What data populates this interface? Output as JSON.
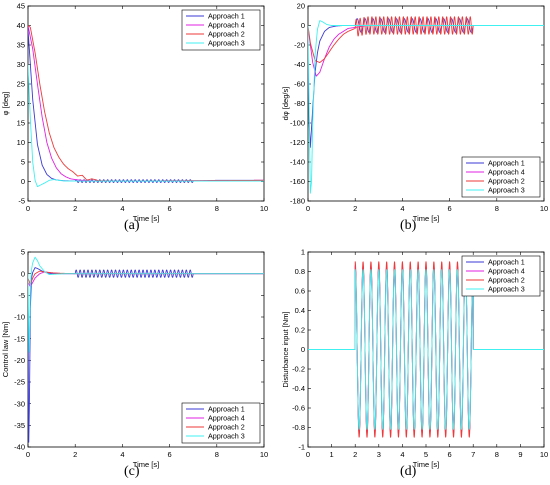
{
  "colors": {
    "approach1": "#3a3ad6",
    "approach4": "#e020e0",
    "approach2": "#ee3a3a",
    "approach3": "#40f0f0"
  },
  "chart_data": [
    {
      "id": "a",
      "type": "line",
      "panel_label": "(a)",
      "xlabel": "Time [s]",
      "ylabel": "φ [deg]",
      "xlim": [
        0,
        10
      ],
      "ylim": [
        -5,
        45
      ],
      "xticks": [
        "0",
        "2",
        "4",
        "6",
        "8",
        "10"
      ],
      "yticks": [
        "-5",
        "0",
        "5",
        "10",
        "15",
        "20",
        "25",
        "30",
        "35",
        "40",
        "45"
      ],
      "legend": "top-right",
      "series": [
        {
          "name": "Approach 1",
          "color": "#3a3ad6",
          "x": [
            0,
            0.2,
            0.4,
            0.6,
            0.8,
            1.0,
            1.2,
            1.5,
            2.0,
            2.5,
            3,
            4,
            5,
            6,
            7,
            8,
            10
          ],
          "y": [
            39,
            21,
            9.5,
            4.2,
            1.8,
            0.8,
            0.4,
            0.2,
            0.1,
            0.1,
            0.1,
            0.1,
            0.1,
            0.1,
            0.1,
            0.3,
            0.3
          ],
          "osc": [
            2,
            7,
            0.35,
            0.5
          ]
        },
        {
          "name": "Approach 4",
          "color": "#e020e0",
          "x": [
            0,
            0.2,
            0.4,
            0.6,
            0.8,
            1.0,
            1.2,
            1.4,
            1.6,
            1.8,
            2.0,
            2.3,
            2.6,
            3,
            4,
            10
          ],
          "y": [
            40,
            34,
            25,
            16.5,
            10,
            6,
            3.5,
            2,
            1.2,
            0.7,
            0.5,
            0.3,
            0.2,
            0.1,
            0.1,
            0.3
          ]
        },
        {
          "name": "Approach 2",
          "color": "#ee3a3a",
          "x": [
            0,
            0.1,
            0.3,
            0.5,
            0.7,
            0.9,
            1.1,
            1.3,
            1.5,
            1.7,
            1.9,
            2.1,
            2.3,
            2.5,
            2.7,
            3,
            4,
            10
          ],
          "y": [
            40,
            39.5,
            33,
            25,
            18,
            12.5,
            8.7,
            6.3,
            4.5,
            3.3,
            2.5,
            1.4,
            1.6,
            0.3,
            0.7,
            0.2,
            0.1,
            0.3
          ]
        },
        {
          "name": "Approach 3",
          "color": "#40f0f0",
          "x": [
            0,
            0.1,
            0.2,
            0.3,
            0.4,
            0.5,
            0.7,
            0.9,
            1.1,
            1.3,
            1.6,
            2,
            3,
            10
          ],
          "y": [
            30,
            16,
            5,
            0.3,
            -1.3,
            -1.0,
            -0.4,
            0.3,
            0.5,
            0.3,
            0.1,
            0.1,
            0.1,
            0.1
          ]
        }
      ]
    },
    {
      "id": "b",
      "type": "line",
      "panel_label": "(b)",
      "xlabel": "Time [s]",
      "ylabel": "dφ [deg/s]",
      "xlim": [
        0,
        10
      ],
      "ylim": [
        -180,
        20
      ],
      "xticks": [
        "0",
        "2",
        "4",
        "6",
        "8",
        "10"
      ],
      "yticks": [
        "-180",
        "-160",
        "-140",
        "-120",
        "-100",
        "-80",
        "-60",
        "-40",
        "-20",
        "0",
        "20"
      ],
      "legend": "bottom-right",
      "series": [
        {
          "name": "Approach 1",
          "color": "#3a3ad6",
          "x": [
            0,
            0.05,
            0.1,
            0.2,
            0.3,
            0.4,
            0.5,
            0.7,
            0.9,
            1.2,
            1.5,
            2,
            10
          ],
          "y": [
            -30,
            -100,
            -125,
            -85,
            -48,
            -28,
            -16,
            -6,
            -2,
            -0.5,
            0,
            0,
            0
          ],
          "osc": [
            2,
            7,
            7,
            1
          ]
        },
        {
          "name": "Approach 4",
          "color": "#e020e0",
          "x": [
            0,
            0.2,
            0.35,
            0.5,
            0.7,
            0.9,
            1.1,
            1.3,
            1.5,
            1.7,
            2,
            2.5,
            10
          ],
          "y": [
            -2,
            -38,
            -52,
            -48,
            -34,
            -22,
            -14,
            -9,
            -6,
            -3,
            -2,
            0,
            0
          ]
        },
        {
          "name": "Approach 2",
          "color": "#ee3a3a",
          "x": [
            0,
            0.1,
            0.3,
            0.5,
            0.7,
            0.9,
            1.1,
            1.3,
            1.5,
            1.7,
            1.9,
            2.1,
            2.5,
            10
          ],
          "y": [
            0,
            -18,
            -36,
            -38,
            -34,
            -27,
            -20,
            -14,
            -9,
            -6,
            -4,
            -2,
            0,
            0
          ],
          "osc": [
            2,
            7,
            9,
            0.5
          ]
        },
        {
          "name": "Approach 3",
          "color": "#40f0f0",
          "x": [
            0,
            0.05,
            0.1,
            0.15,
            0.2,
            0.3,
            0.4,
            0.5,
            0.6,
            0.8,
            1.0,
            1.3,
            1.6,
            2,
            10
          ],
          "y": [
            0,
            -90,
            -172,
            -160,
            -100,
            -30,
            -4,
            5,
            4,
            1,
            0,
            0,
            0,
            0,
            0
          ]
        }
      ]
    },
    {
      "id": "c",
      "type": "line",
      "panel_label": "(c)",
      "xlabel": "Time [s]",
      "ylabel": "Control law [Nm]",
      "xlim": [
        0,
        10
      ],
      "ylim": [
        -40,
        5
      ],
      "xticks": [
        "0",
        "2",
        "4",
        "6",
        "8",
        "10"
      ],
      "yticks": [
        "-40",
        "-35",
        "-30",
        "-25",
        "-20",
        "-15",
        "-10",
        "-5",
        "0",
        "5"
      ],
      "legend": "bottom-right",
      "series": [
        {
          "name": "Approach 1",
          "color": "#3a3ad6",
          "x": [
            0,
            0.03,
            0.06,
            0.1,
            0.15,
            0.2,
            0.3,
            0.4,
            0.6,
            0.8,
            1.0,
            1.5,
            2,
            10
          ],
          "y": [
            -5,
            -40,
            -30,
            -8,
            -1,
            0.3,
            1.4,
            1.2,
            0.6,
            0.2,
            0,
            0,
            0,
            0
          ],
          "osc": [
            2,
            7,
            0.85,
            0.5
          ]
        },
        {
          "name": "Approach 4",
          "color": "#e020e0",
          "x": [
            0,
            0.1,
            0.2,
            0.3,
            0.5,
            0.7,
            1.0,
            1.5,
            2,
            10
          ],
          "y": [
            -2,
            -3,
            -2,
            -1,
            0,
            0.4,
            0.2,
            0,
            0,
            0
          ]
        },
        {
          "name": "Approach 2",
          "color": "#ee3a3a",
          "x": [
            0,
            0.1,
            0.2,
            0.3,
            0.5,
            0.7,
            1.0,
            1.3,
            2,
            10
          ],
          "y": [
            -1,
            -2.5,
            -1,
            0,
            0.6,
            0.4,
            0.2,
            0.1,
            0,
            0
          ]
        },
        {
          "name": "Approach 3",
          "color": "#40f0f0",
          "x": [
            0,
            0.05,
            0.1,
            0.15,
            0.2,
            0.3,
            0.4,
            0.5,
            0.7,
            0.9,
            1.2,
            1.6,
            2,
            10
          ],
          "y": [
            0,
            -20,
            -3,
            1,
            2.5,
            3.8,
            3,
            1.8,
            0.5,
            -0.2,
            -0.1,
            0,
            0,
            0
          ]
        }
      ]
    },
    {
      "id": "d",
      "type": "line",
      "panel_label": "(d)",
      "xlabel": "Time [s]",
      "ylabel": "Disturbance input [Nm]",
      "xlim": [
        0,
        10
      ],
      "ylim": [
        -1,
        1
      ],
      "xticks": [
        "0",
        "1",
        "2",
        "3",
        "4",
        "5",
        "6",
        "7",
        "8",
        "9",
        "10"
      ],
      "yticks": [
        "-1",
        "-0.8",
        "-0.6",
        "-0.4",
        "-0.2",
        "0",
        "0.2",
        "0.4",
        "0.6",
        "0.8",
        "1"
      ],
      "legend": "top-right",
      "series": [
        {
          "name": "Approach 1",
          "color": "#3a3ad6",
          "disturbance": [
            2,
            7,
            0.85,
            3
          ]
        },
        {
          "name": "Approach 4",
          "color": "#e020e0",
          "disturbance": [
            2,
            7,
            0.86,
            3
          ]
        },
        {
          "name": "Approach 2",
          "color": "#ee3a3a",
          "disturbance": [
            2,
            7,
            0.9,
            3
          ]
        },
        {
          "name": "Approach 3",
          "color": "#40f0f0",
          "disturbance": [
            2,
            7,
            0.82,
            3
          ]
        }
      ]
    }
  ]
}
